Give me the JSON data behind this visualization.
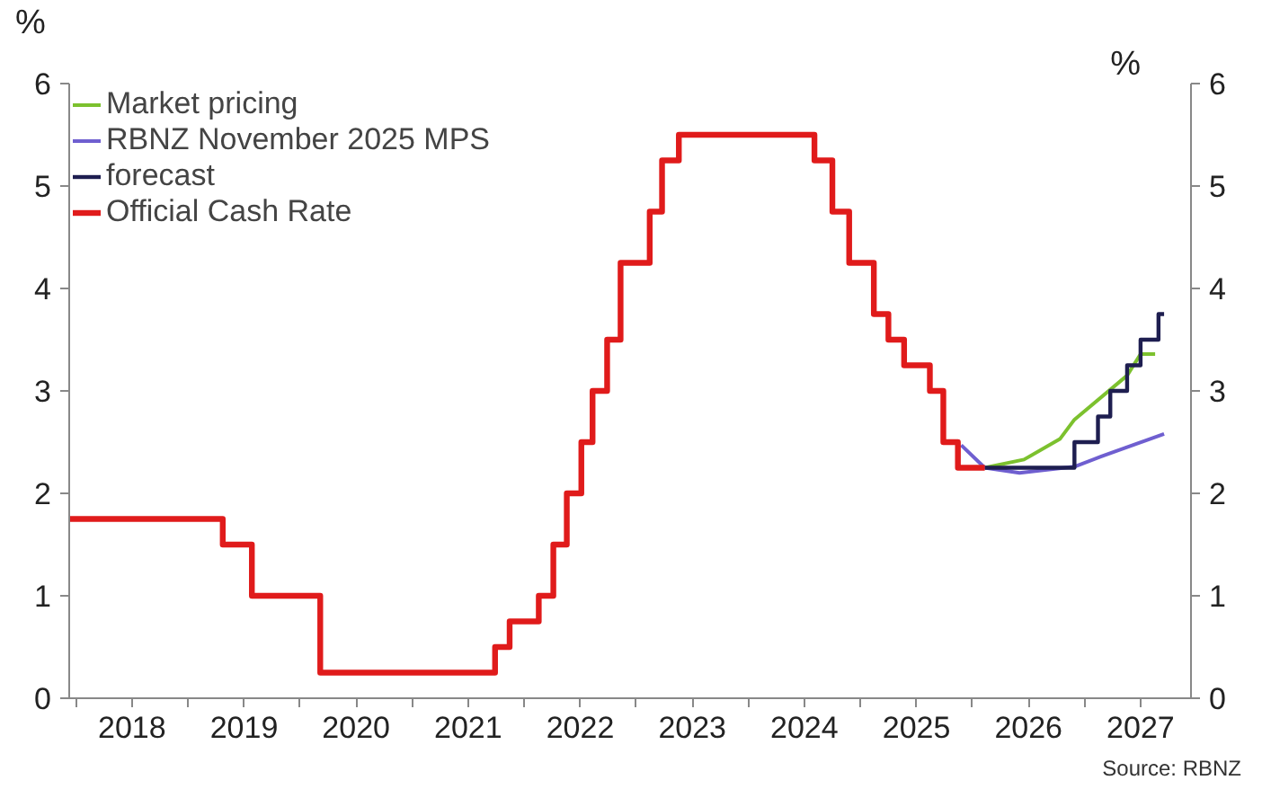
{
  "chart_data": {
    "type": "step",
    "ylabel": "%",
    "y2label": "%",
    "legend": "top left",
    "grid": false,
    "annotations": [
      "Source: RBNZ"
    ],
    "xlim": [
      2017.94,
      2027.95
    ],
    "ylim": [
      0,
      6
    ],
    "y2lim": [
      0,
      6
    ],
    "xticks": [
      {
        "value": 2018,
        "label": null
      },
      {
        "value": 2018.5,
        "label": "2018"
      },
      {
        "value": 2019,
        "label": null
      },
      {
        "value": 2019.5,
        "label": "2019"
      },
      {
        "value": 2020,
        "label": null
      },
      {
        "value": 2020.5,
        "label": "2020"
      },
      {
        "value": 2021,
        "label": null
      },
      {
        "value": 2021.5,
        "label": "2021"
      },
      {
        "value": 2022,
        "label": null
      },
      {
        "value": 2022.5,
        "label": "2022"
      },
      {
        "value": 2023,
        "label": null
      },
      {
        "value": 2023.5,
        "label": "2023"
      },
      {
        "value": 2024,
        "label": null
      },
      {
        "value": 2024.5,
        "label": "2024"
      },
      {
        "value": 2025,
        "label": null
      },
      {
        "value": 2025.5,
        "label": "2025"
      },
      {
        "value": 2026,
        "label": null
      },
      {
        "value": 2026.5,
        "label": "2026"
      },
      {
        "value": 2027,
        "label": null
      },
      {
        "value": 2027.5,
        "label": "2027"
      }
    ],
    "yticks": [
      0,
      1,
      2,
      3,
      4,
      5,
      6
    ],
    "y2ticks": [
      0,
      1,
      2,
      3,
      4,
      5,
      6
    ],
    "series": [
      {
        "name": "Market pricing",
        "type": "line",
        "color": "#7cc12e",
        "x": [
          2026.11,
          2026.46,
          2026.78,
          2026.91,
          2027.38,
          2027.5,
          2027.63
        ],
        "values": [
          2.25,
          2.33,
          2.53,
          2.72,
          3.15,
          3.36,
          3.36
        ]
      },
      {
        "name": "RBNZ November 2025 MPS",
        "type": "line",
        "color": "#6f5fd0",
        "x": [
          2025.9,
          2026.11,
          2026.42,
          2026.91,
          2027.15,
          2027.71
        ],
        "values": [
          2.47,
          2.25,
          2.2,
          2.26,
          2.36,
          2.58
        ]
      },
      {
        "name": "forecast",
        "color": "#1e1e50",
        "x": [
          2026.11,
          2026.91,
          2027.12,
          2027.23,
          2027.38,
          2027.5,
          2027.66,
          2027.71
        ],
        "values": [
          2.25,
          2.5,
          2.75,
          3.0,
          3.25,
          3.5,
          3.75,
          3.75
        ]
      },
      {
        "name": "Official Cash Rate",
        "color": "#e01b1b",
        "x": [
          2017.94,
          2019.31,
          2019.57,
          2020.18,
          2021.74,
          2021.87,
          2022.13,
          2022.26,
          2022.38,
          2022.51,
          2022.61,
          2022.74,
          2022.86,
          2023.12,
          2023.23,
          2023.38,
          2024.59,
          2024.75,
          2024.9,
          2025.12,
          2025.25,
          2025.39,
          2025.62,
          2025.74,
          2025.87,
          2026.11
        ],
        "values": [
          1.75,
          1.5,
          1.0,
          0.25,
          0.5,
          0.75,
          1.0,
          1.5,
          2.0,
          2.5,
          3.0,
          3.5,
          4.25,
          4.75,
          5.25,
          5.5,
          5.25,
          4.75,
          4.25,
          3.75,
          3.5,
          3.25,
          3.0,
          2.5,
          2.25,
          2.25
        ]
      }
    ]
  }
}
